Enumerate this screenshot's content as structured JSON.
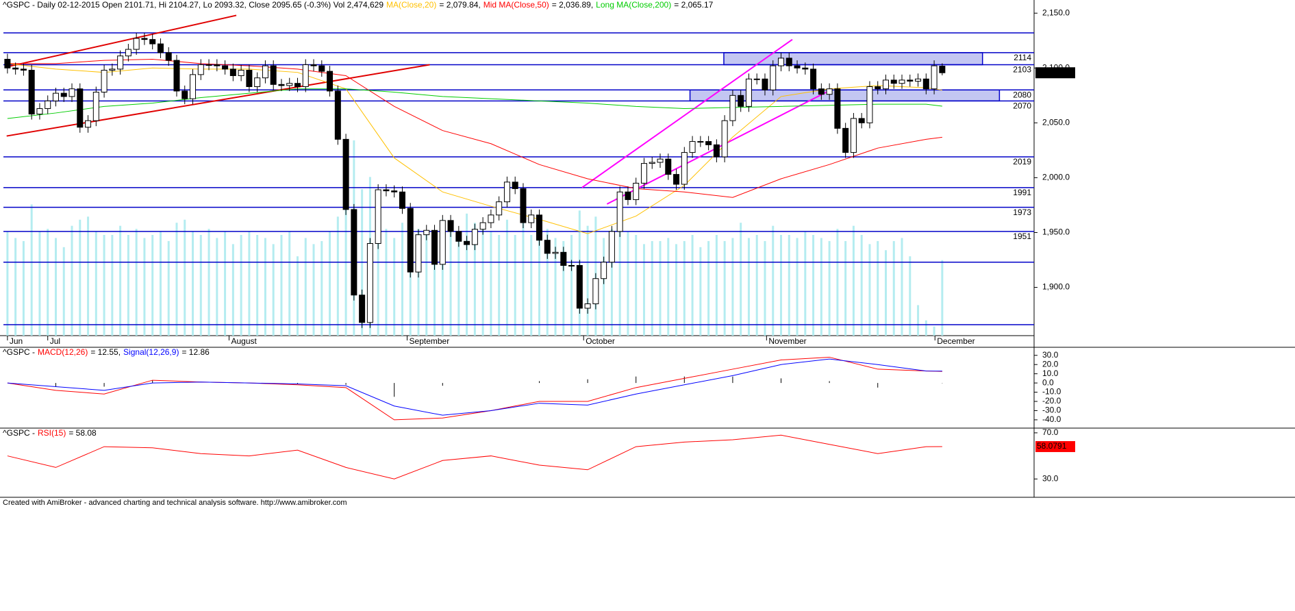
{
  "chart_data": [
    {
      "type": "candlestick",
      "title": "^GSPC - Daily 02-12-2015 Open 2101.71, Hi 2104.27, Lo 2093.32, Close 2095.65 (-0.3%) Vol 2,474,629",
      "xlim": [
        -0.5,
        127.4
      ],
      "xticks": [
        {
          "value": 0,
          "label": "Jun"
        },
        {
          "value": 5,
          "label": "Jul"
        },
        {
          "value": 27.5,
          "label": "August"
        },
        {
          "value": 49.6,
          "label": "September"
        },
        {
          "value": 71.5,
          "label": "October"
        },
        {
          "value": 94.2,
          "label": "November"
        },
        {
          "value": 115.1,
          "label": "December"
        }
      ],
      "ylim": [
        1856,
        2162
      ],
      "yticks": [
        {
          "value": 2150,
          "label": "2,150.0"
        },
        {
          "value": 2100,
          "label": "2,100.0"
        },
        {
          "value": 2050,
          "label": "2,050.0"
        },
        {
          "value": 2000,
          "label": "2,000.0"
        },
        {
          "value": 1950,
          "label": "1,950.0"
        },
        {
          "value": 1900,
          "label": "1,900.0"
        }
      ],
      "open": [
        2108,
        2100,
        2099,
        2098,
        2058,
        2063,
        2070,
        2077,
        2074,
        2081,
        2046,
        2052,
        2078,
        2098,
        2099,
        2111,
        2117,
        2127,
        2126,
        2122,
        2114,
        2107,
        2079,
        2072,
        2094,
        2103,
        2103,
        2102,
        2099,
        2093,
        2098,
        2083,
        2091,
        2102,
        2085,
        2084,
        2086,
        2083,
        2103,
        2102,
        2097,
        2079,
        2035,
        1971,
        1893,
        1868,
        1940,
        1989,
        1988,
        1987,
        1972,
        1914,
        1948,
        1952,
        1921,
        1961,
        1951,
        1942,
        1939,
        1953,
        1959,
        1966,
        1978,
        1996,
        1990,
        1959,
        1966,
        1943,
        1931,
        1932,
        1920,
        1920,
        1881,
        1885,
        1908,
        1923,
        1951,
        1987,
        1980,
        1995,
        2013,
        2014,
        2017,
        2003,
        1994,
        2023,
        2033,
        2033,
        2030,
        2019,
        2052,
        2075,
        2065,
        2090,
        2090,
        2080,
        2102,
        2109,
        2102,
        2100,
        2099,
        2081,
        2076,
        2081,
        2045,
        2023,
        2054,
        2050,
        2083,
        2081,
        2089,
        2086,
        2089,
        2088,
        2090,
        2081,
        2101.71
      ],
      "high": [
        2113,
        2105,
        2104,
        2103,
        2068,
        2075,
        2082,
        2082,
        2086,
        2086,
        2057,
        2083,
        2103,
        2104,
        2116,
        2122,
        2132,
        2132,
        2131,
        2127,
        2119,
        2112,
        2084,
        2099,
        2108,
        2108,
        2108,
        2107,
        2104,
        2103,
        2103,
        2096,
        2107,
        2107,
        2090,
        2091,
        2091,
        2108,
        2108,
        2107,
        2102,
        2084,
        2040,
        1976,
        1898,
        1945,
        1994,
        1994,
        1993,
        1992,
        1977,
        1953,
        1957,
        1957,
        1966,
        1966,
        1956,
        1947,
        1958,
        1964,
        1971,
        1983,
        2001,
        2001,
        1995,
        1971,
        1971,
        1948,
        1937,
        1937,
        1925,
        1925,
        1890,
        1913,
        1928,
        1956,
        1992,
        1992,
        2000,
        2018,
        2019,
        2022,
        2022,
        2008,
        2028,
        2038,
        2038,
        2038,
        2035,
        2057,
        2080,
        2080,
        2095,
        2095,
        2095,
        2107,
        2114,
        2114,
        2107,
        2105,
        2104,
        2086,
        2086,
        2086,
        2050,
        2059,
        2059,
        2088,
        2088,
        2094,
        2094,
        2094,
        2094,
        2095,
        2095,
        2107,
        2104.27
      ],
      "low": [
        2095,
        2094,
        2093,
        2053,
        2053,
        2058,
        2065,
        2069,
        2069,
        2041,
        2041,
        2047,
        2073,
        2093,
        2094,
        2106,
        2112,
        2121,
        2117,
        2109,
        2102,
        2074,
        2067,
        2067,
        2089,
        2098,
        2097,
        2094,
        2088,
        2088,
        2078,
        2078,
        2086,
        2080,
        2079,
        2079,
        2078,
        2078,
        2097,
        2092,
        2074,
        2030,
        1966,
        1888,
        1863,
        1863,
        1935,
        1983,
        1982,
        1967,
        1909,
        1909,
        1943,
        1916,
        1916,
        1946,
        1937,
        1934,
        1934,
        1948,
        1954,
        1961,
        1973,
        1985,
        1954,
        1954,
        1938,
        1926,
        1926,
        1915,
        1915,
        1876,
        1876,
        1880,
        1903,
        1918,
        1946,
        1975,
        1975,
        1990,
        2008,
        2009,
        1998,
        1989,
        1989,
        2018,
        2028,
        2025,
        2014,
        2014,
        2047,
        2060,
        2060,
        2085,
        2075,
        2075,
        2097,
        2097,
        2095,
        2094,
        2076,
        2071,
        2071,
        2040,
        2018,
        2018,
        2045,
        2045,
        2076,
        2076,
        2081,
        2081,
        2083,
        2083,
        2076,
        2076,
        2093.32
      ],
      "close": [
        2100,
        2099,
        2098,
        2058,
        2063,
        2070,
        2077,
        2074,
        2081,
        2046,
        2052,
        2078,
        2098,
        2099,
        2111,
        2117,
        2127,
        2126,
        2122,
        2114,
        2107,
        2079,
        2072,
        2094,
        2103,
        2103,
        2102,
        2099,
        2093,
        2098,
        2083,
        2091,
        2102,
        2085,
        2084,
        2086,
        2083,
        2103,
        2102,
        2097,
        2079,
        2035,
        1971,
        1893,
        1868,
        1940,
        1989,
        1988,
        1987,
        1972,
        1914,
        1948,
        1952,
        1921,
        1961,
        1951,
        1942,
        1939,
        1953,
        1959,
        1966,
        1978,
        1996,
        1990,
        1959,
        1966,
        1943,
        1931,
        1932,
        1920,
        1920,
        1881,
        1885,
        1908,
        1923,
        1951,
        1987,
        1980,
        1995,
        2013,
        2014,
        2017,
        2003,
        1994,
        2023,
        2033,
        2033,
        2030,
        2019,
        2052,
        2075,
        2065,
        2090,
        2090,
        2080,
        2102,
        2109,
        2102,
        2100,
        2099,
        2081,
        2076,
        2081,
        2045,
        2023,
        2054,
        2050,
        2083,
        2081,
        2089,
        2086,
        2089,
        2088,
        2090,
        2081,
        2102,
        2095.65
      ],
      "volume": [
        3400000,
        3200000,
        3100000,
        4300000,
        3400000,
        3500000,
        3200000,
        2900000,
        3600000,
        3800000,
        3900000,
        3400000,
        3300000,
        3300000,
        3600000,
        3300000,
        3500000,
        3200000,
        3300000,
        3400000,
        3100000,
        3700000,
        3800000,
        3400000,
        3300000,
        3500000,
        3200000,
        3400000,
        3000000,
        3300000,
        3400000,
        3300000,
        3200000,
        3000000,
        3300000,
        3400000,
        2600000,
        3200000,
        3000000,
        3100000,
        3400000,
        3900000,
        5500000,
        6400000,
        4800000,
        5200000,
        4200000,
        3500000,
        3200000,
        3700000,
        4100000,
        3500000,
        3300000,
        3200000,
        3800000,
        3500000,
        3200000,
        4000000,
        3700000,
        3600000,
        3400000,
        3300000,
        3800000,
        3300000,
        3900000,
        3300000,
        3400000,
        3500000,
        3200000,
        3100000,
        3300000,
        4100000,
        3600000,
        3900000,
        3200000,
        3500000,
        3700000,
        3400000,
        3300000,
        3000000,
        3100000,
        3100000,
        3200000,
        3000000,
        3100000,
        3300000,
        2900000,
        3100000,
        3300000,
        3100000,
        3200000,
        3700000,
        3200000,
        3300000,
        3100000,
        3600000,
        3300000,
        3300000,
        3200000,
        3400000,
        3300000,
        3200000,
        3100000,
        3500000,
        3100000,
        3600000,
        3300000,
        3000000,
        3100000,
        2800000,
        3100000,
        3200000,
        2600000,
        1000000,
        500000,
        300000,
        2474629
      ],
      "vlim": [
        0,
        11000000
      ],
      "volume_color": "#b4ecf0",
      "up_color": "#ffffff",
      "down_color": "#000000",
      "line_x": [
        0,
        6,
        12,
        18,
        24,
        30,
        36,
        42,
        48,
        54,
        60,
        66,
        72,
        78,
        84,
        90,
        96,
        102,
        108,
        114,
        116
      ],
      "series": [
        {
          "name": "MA(Close,20)",
          "color": "#ffc000",
          "value_label": "= 2,079.84,",
          "values": [
            2104,
            2099,
            2096,
            2100,
            2099,
            2099,
            2096,
            2081,
            2018,
            1987,
            1974,
            1962,
            1949,
            1965,
            1993,
            2037,
            2074,
            2081,
            2084,
            2082,
            2079.84
          ]
        },
        {
          "name": "Mid MA(Close,50)",
          "color": "#ff0000",
          "value_label": "= 2,036.89,",
          "values": [
            2104,
            2104,
            2107,
            2108,
            2104,
            2102,
            2099,
            2093,
            2065,
            2043,
            2031,
            2012,
            1999,
            1990,
            1987,
            1982,
            1999,
            2012,
            2027,
            2035,
            2036.89
          ]
        },
        {
          "name": "Long MA(Close,200)",
          "color": "#00cc00",
          "value_label": "= 2,065.17",
          "values": [
            2054,
            2059,
            2065,
            2068,
            2073,
            2077,
            2081,
            2081,
            2078,
            2074,
            2072,
            2070,
            2068,
            2065,
            2063,
            2064,
            2065,
            2066,
            2067,
            2067,
            2065.17
          ]
        }
      ],
      "level_color": "#0000c8",
      "labeled_levels": [
        2114,
        2103,
        2080,
        2070,
        2019,
        1991,
        1973,
        1951
      ],
      "plain_levels": [
        2132,
        1923,
        1866
      ],
      "zone_color": "#b8bcf0",
      "zones": [
        {
          "x": [
            88.9,
            121
          ],
          "y": [
            2103,
            2114
          ]
        },
        {
          "x": [
            84.7,
            123.1
          ],
          "y": [
            2070,
            2080
          ]
        }
      ],
      "trendlines": [
        {
          "color": "#e00000",
          "x": [
            -0.1,
            28.4
          ],
          "y": [
            2101,
            2148
          ]
        },
        {
          "color": "#e00000",
          "x": [
            -0.1,
            52.4
          ],
          "y": [
            2038,
            2103
          ]
        },
        {
          "color": "#ff00ff",
          "x": [
            71.3,
            97.4
          ],
          "y": [
            1991,
            2126
          ]
        },
        {
          "color": "#ff00ff",
          "x": [
            74.4,
            101.9
          ],
          "y": [
            1976,
            2079
          ]
        }
      ],
      "last_value": 2095.65,
      "last_label": "2,095.65",
      "last_color": "#000000"
    },
    {
      "type": "line",
      "title": "^GSPC -",
      "xlim": [
        -0.5,
        127.4
      ],
      "ylim": [
        -49,
        38
      ],
      "yticks": [
        {
          "value": 30,
          "label": "30.0"
        },
        {
          "value": 20,
          "label": "20.0"
        },
        {
          "value": 10,
          "label": "10.0"
        },
        {
          "value": 0,
          "label": "0.0"
        },
        {
          "value": -10,
          "label": "-10.0"
        },
        {
          "value": -20,
          "label": "-20.0"
        },
        {
          "value": -30,
          "label": "-30.0"
        },
        {
          "value": -40,
          "label": "-40.0"
        }
      ],
      "line_x": [
        0,
        6,
        12,
        18,
        24,
        30,
        36,
        42,
        48,
        54,
        60,
        66,
        72,
        78,
        84,
        90,
        96,
        102,
        108,
        114,
        116
      ],
      "series": [
        {
          "name": "MACD(12,26)",
          "color": "#ff0000",
          "value_label": "= 12.55,",
          "values": [
            0,
            -8,
            -12,
            3,
            1,
            0,
            -2,
            -5,
            -40,
            -38,
            -30,
            -20,
            -20,
            -5,
            5,
            15,
            25,
            28,
            15,
            13,
            12.55
          ]
        },
        {
          "name": "Signal(12,26,9)",
          "color": "#0000ff",
          "value_label": "= 12.86",
          "values": [
            0,
            -4,
            -8,
            0,
            1,
            0,
            -1,
            -3,
            -25,
            -35,
            -30,
            -22,
            -24,
            -12,
            -2,
            8,
            20,
            26,
            20,
            13,
            12.86
          ]
        }
      ],
      "histogram": {
        "color": "#000000",
        "values": [
          0,
          -4,
          -4,
          3,
          0,
          0,
          -1,
          -2,
          -15,
          -3,
          0,
          2,
          4,
          7,
          7,
          7,
          5,
          2,
          -5,
          0,
          -0.31
        ]
      }
    },
    {
      "type": "line",
      "title": "^GSPC -",
      "xlim": [
        -0.5,
        127.4
      ],
      "ylim": [
        14.7,
        73.5
      ],
      "yticks": [
        {
          "value": 70,
          "label": "70.0"
        },
        {
          "value": 30,
          "label": "30.0"
        }
      ],
      "line_x": [
        0,
        6,
        12,
        18,
        24,
        30,
        36,
        42,
        48,
        54,
        60,
        66,
        72,
        78,
        84,
        90,
        96,
        102,
        108,
        114,
        116
      ],
      "series": [
        {
          "name": "RSI(15)",
          "color": "#ff0000",
          "value_label": "= 58.08",
          "values": [
            50,
            40,
            58,
            57,
            52,
            50,
            55,
            40,
            30,
            46,
            50,
            42,
            38,
            58,
            62,
            64,
            68,
            60,
            52,
            58,
            58.0791
          ]
        }
      ],
      "last_value": 58.0791,
      "last_label": "58.0791",
      "last_color": "#ff0000"
    }
  ],
  "footer": "Created with AmiBroker - advanced charting and technical analysis software. http://www.amibroker.com"
}
